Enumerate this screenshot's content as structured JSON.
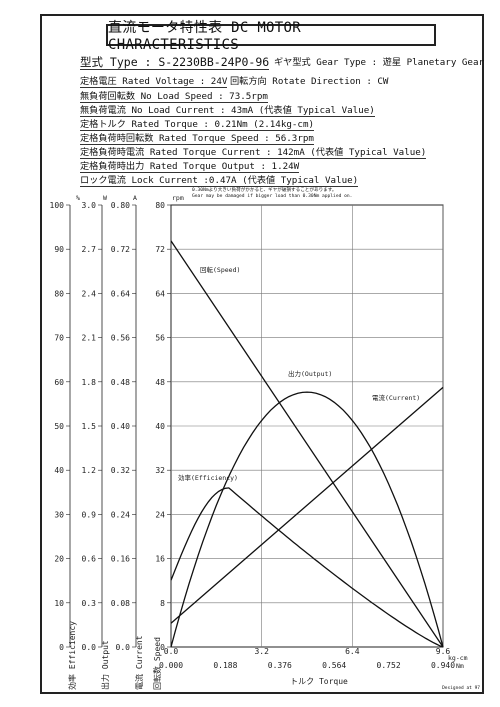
{
  "title": "直流モータ特性表 DC MOTOR CHARACTERISTICS",
  "specs": {
    "type": "型式 Type : S-2230BB-24P0-96",
    "gear_type": "ギヤ型式 Gear Type : 遊星 Planetary Gear",
    "voltage": "定格電圧 Rated Voltage : 24V",
    "rotation": "回転方向 Rotate Direction : CW",
    "no_load_speed": "無負荷回転数 No Load Speed : 73.5rpm",
    "no_load_current": "無負荷電流 No Load Current : 43mA (代表値 Typical Value)",
    "rated_torque": "定格トルク Rated Torque : 0.21Nm (2.14kg-cm)",
    "rated_torque_speed": "定格負荷時回転数 Rated Torque Speed : 56.3rpm",
    "rated_torque_current": "定格負荷時電流 Rated Torque Current : 142mA (代表値 Typical Value)",
    "rated_output": "定格負荷時出力 Rated Torque Output : 1.24W",
    "lock_current": "ロック電流 Lock Current :0.47A (代表値 Typical Value)"
  },
  "notes": {
    "jp": "0.30Nmより大きい負荷がかかると、ギヤが破損することがあります。",
    "en": "Gear may be damaged if bigger load than 0.30Nm applied on."
  },
  "footer": "Designed at 97",
  "axes": {
    "efficiency_unit": "%",
    "output_unit": "W",
    "current_unit": "A",
    "speed_unit": "rpm",
    "torque_unit_top": "kg-cm",
    "torque_unit_bottom": "Nm",
    "efficiency_label": "効率 Efficiency",
    "output_label": "出力 Output",
    "current_label": "電流 Current",
    "speed_label": "回転数 Speed",
    "xlabel": "トルク Torque"
  },
  "chart_data": {
    "type": "line",
    "x_nm": [
      0,
      0.94
    ],
    "x_ticks_nm": [
      "0.000",
      "0.188",
      "0.376",
      "0.564",
      "0.752",
      "0.940"
    ],
    "x_ticks_kgcm": [
      "0.0",
      "3.2",
      "6.4",
      "9.6"
    ],
    "y_speed_ticks": [
      "0",
      "8",
      "16",
      "24",
      "32",
      "40",
      "48",
      "56",
      "64",
      "72",
      "80"
    ],
    "y_current_ticks": [
      "0.0",
      "0.08",
      "0.16",
      "0.24",
      "0.32",
      "0.40",
      "0.48",
      "0.56",
      "0.64",
      "0.72",
      "0.80"
    ],
    "y_output_ticks": [
      "0.0",
      "0.3",
      "0.6",
      "0.9",
      "1.2",
      "1.5",
      "1.8",
      "2.1",
      "2.4",
      "2.7",
      "3.0"
    ],
    "y_eff_ticks": [
      "0",
      "10",
      "20",
      "30",
      "40",
      "50",
      "60",
      "70",
      "80",
      "90",
      "100"
    ],
    "ylim_speed": [
      0,
      80
    ],
    "grid": true,
    "series": [
      {
        "name": "回転(Speed)",
        "axis": "speed",
        "x": [
          0,
          0.94
        ],
        "y": [
          73.5,
          0
        ]
      },
      {
        "name": "電流(Current)",
        "axis": "current",
        "x": [
          0,
          0.94
        ],
        "y": [
          0.043,
          0.47
        ]
      },
      {
        "name": "出力(Output)",
        "axis": "output",
        "peak_x": 0.47,
        "peak_y": 1.73
      },
      {
        "name": "効率(Efficiency)",
        "axis": "efficiency",
        "peak_x": 0.2,
        "peak_y": 36
      }
    ]
  }
}
